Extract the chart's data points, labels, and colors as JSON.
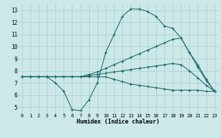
{
  "title": "",
  "xlabel": "Humidex (Indice chaleur)",
  "ylabel": "",
  "xlim": [
    -0.5,
    23.5
  ],
  "ylim": [
    4.5,
    13.5
  ],
  "xticks": [
    0,
    1,
    2,
    3,
    4,
    5,
    6,
    7,
    8,
    9,
    10,
    11,
    12,
    13,
    14,
    15,
    16,
    17,
    18,
    19,
    20,
    21,
    22,
    23
  ],
  "yticks": [
    5,
    6,
    7,
    8,
    9,
    10,
    11,
    12,
    13
  ],
  "background_color": "#cce8e8",
  "grid_color": "#aacccc",
  "line_color": "#1a6b6b",
  "lines": [
    {
      "x": [
        0,
        1,
        2,
        3,
        4,
        5,
        6,
        7,
        8,
        9,
        10,
        11,
        12,
        13,
        14,
        15,
        16,
        17,
        18,
        19,
        20,
        21,
        22,
        23
      ],
      "y": [
        7.5,
        7.5,
        7.5,
        7.5,
        7.0,
        6.3,
        4.8,
        4.7,
        5.6,
        7.0,
        9.5,
        11.0,
        12.5,
        13.1,
        13.1,
        12.9,
        12.5,
        11.7,
        11.5,
        10.7,
        9.5,
        8.5,
        7.3,
        6.3
      ]
    },
    {
      "x": [
        0,
        1,
        2,
        3,
        4,
        5,
        6,
        7,
        8,
        9,
        10,
        11,
        12,
        13,
        14,
        15,
        16,
        17,
        18,
        19,
        20,
        21,
        22,
        23
      ],
      "y": [
        7.5,
        7.5,
        7.5,
        7.5,
        7.5,
        7.5,
        7.5,
        7.5,
        7.7,
        7.9,
        8.2,
        8.5,
        8.8,
        9.1,
        9.4,
        9.7,
        10.0,
        10.3,
        10.6,
        10.7,
        9.5,
        8.3,
        7.2,
        6.3
      ]
    },
    {
      "x": [
        0,
        1,
        2,
        3,
        4,
        5,
        6,
        7,
        8,
        9,
        10,
        11,
        12,
        13,
        14,
        15,
        16,
        17,
        18,
        19,
        20,
        21,
        22,
        23
      ],
      "y": [
        7.5,
        7.5,
        7.5,
        7.5,
        7.5,
        7.5,
        7.5,
        7.5,
        7.6,
        7.7,
        7.8,
        7.9,
        8.0,
        8.1,
        8.2,
        8.3,
        8.4,
        8.5,
        8.6,
        8.5,
        8.0,
        7.4,
        6.8,
        6.3
      ]
    },
    {
      "x": [
        0,
        1,
        2,
        3,
        4,
        5,
        6,
        7,
        8,
        9,
        10,
        11,
        12,
        13,
        14,
        15,
        16,
        17,
        18,
        19,
        20,
        21,
        22,
        23
      ],
      "y": [
        7.5,
        7.5,
        7.5,
        7.5,
        7.5,
        7.5,
        7.5,
        7.5,
        7.5,
        7.5,
        7.5,
        7.3,
        7.1,
        6.9,
        6.8,
        6.7,
        6.6,
        6.5,
        6.4,
        6.4,
        6.4,
        6.4,
        6.3,
        6.3
      ]
    }
  ],
  "marker": "+",
  "markersize": 3,
  "markeredgewidth": 0.8,
  "linewidth": 0.8,
  "xlabel_fontsize": 6,
  "tick_fontsize": 5
}
